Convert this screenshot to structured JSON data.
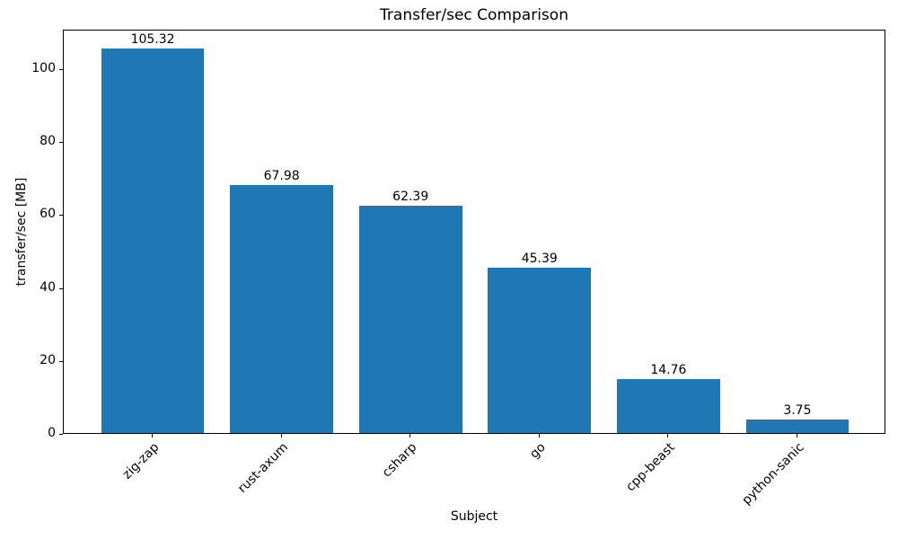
{
  "chart_data": {
    "type": "bar",
    "title": "Transfer/sec Comparison",
    "xlabel": "Subject",
    "ylabel": "transfer/sec [MB]",
    "categories": [
      "zig-zap",
      "rust-axum",
      "csharp",
      "go",
      "cpp-beast",
      "python-sanic"
    ],
    "values": [
      105.32,
      67.98,
      62.39,
      45.39,
      14.76,
      3.75
    ],
    "bar_labels": [
      "105.32",
      "67.98",
      "62.39",
      "45.39",
      "14.76",
      "3.75"
    ],
    "yticks": [
      0,
      20,
      40,
      60,
      80,
      100
    ],
    "ytick_labels": [
      "0",
      "20",
      "40",
      "60",
      "80",
      "100"
    ],
    "ylim": [
      0,
      110.8
    ],
    "xlim": [
      -0.69,
      5.69
    ],
    "bar_width": 0.8,
    "x_tick_rotation_deg": 45,
    "grid": false,
    "legend": false,
    "colors": {
      "bar": "#1f77b4",
      "text": "#000000",
      "spine": "#000000",
      "background": "#ffffff"
    }
  }
}
